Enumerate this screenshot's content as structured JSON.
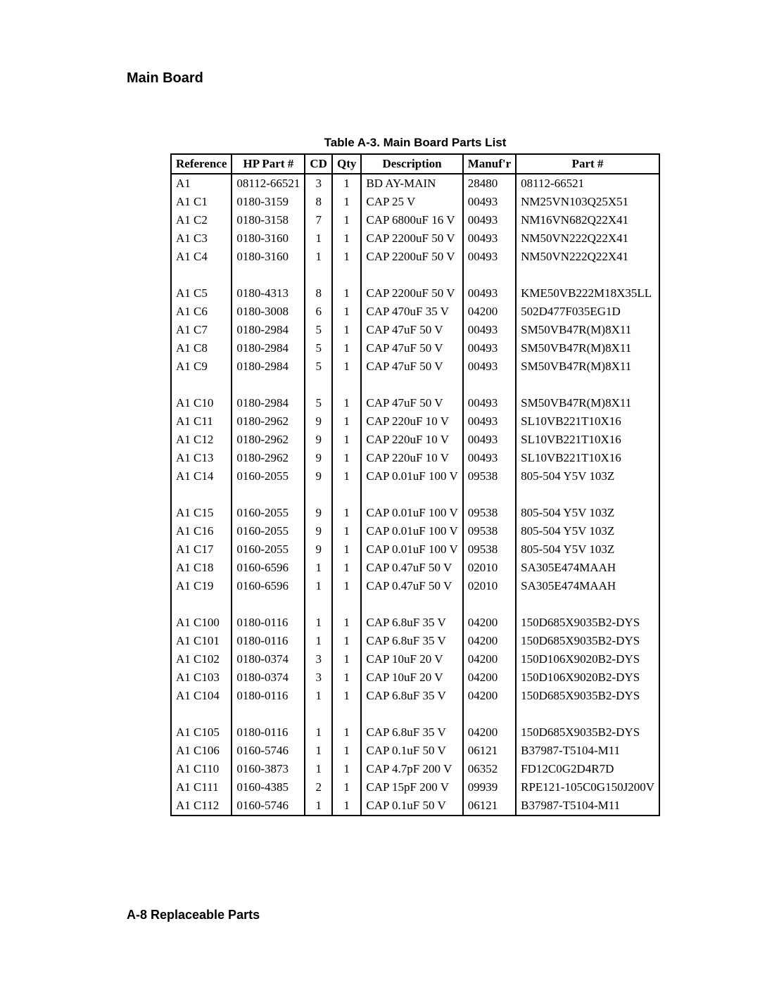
{
  "section_title": "Main Board",
  "table_title": "Table A-3. Main Board Parts List",
  "footer": "A-8   Replaceable Parts",
  "table": {
    "columns": [
      "Reference",
      "HP Part #",
      "CD",
      "Qty",
      "Description",
      "Manuf'r",
      "Part #"
    ],
    "column_align": [
      "left",
      "left",
      "center",
      "center",
      "left",
      "left",
      "left"
    ],
    "groups": [
      {
        "rows": [
          [
            "A1",
            "08112-66521",
            "3",
            "1",
            "BD AY-MAIN",
            "28480",
            "08112-66521"
          ],
          [
            "A1 C1",
            "0180-3159",
            "8",
            "1",
            "CAP 25 V",
            "00493",
            "NM25VN103Q25X51"
          ],
          [
            "A1 C2",
            "0180-3158",
            "7",
            "1",
            "CAP 6800uF 16 V",
            "00493",
            "NM16VN682Q22X41"
          ],
          [
            "A1 C3",
            "0180-3160",
            "1",
            "1",
            "CAP 2200uF 50 V",
            "00493",
            "NM50VN222Q22X41"
          ],
          [
            "A1 C4",
            "0180-3160",
            "1",
            "1",
            "CAP 2200uF 50 V",
            "00493",
            "NM50VN222Q22X41"
          ]
        ]
      },
      {
        "rows": [
          [
            "A1 C5",
            "0180-4313",
            "8",
            "1",
            "CAP 2200uF 50 V",
            "00493",
            "KME50VB222M18X35LL"
          ],
          [
            "A1 C6",
            "0180-3008",
            "6",
            "1",
            "CAP 470uF 35 V",
            "04200",
            "502D477F035EG1D"
          ],
          [
            "A1 C7",
            "0180-2984",
            "5",
            "1",
            "CAP 47uF 50 V",
            "00493",
            "SM50VB47R(M)8X11"
          ],
          [
            "A1 C8",
            "0180-2984",
            "5",
            "1",
            "CAP 47uF 50 V",
            "00493",
            "SM50VB47R(M)8X11"
          ],
          [
            "A1 C9",
            "0180-2984",
            "5",
            "1",
            "CAP 47uF 50 V",
            "00493",
            "SM50VB47R(M)8X11"
          ]
        ]
      },
      {
        "rows": [
          [
            "A1 C10",
            "0180-2984",
            "5",
            "1",
            "CAP 47uF 50 V",
            "00493",
            "SM50VB47R(M)8X11"
          ],
          [
            "A1 C11",
            "0180-2962",
            "9",
            "1",
            "CAP 220uF 10 V",
            "00493",
            "SL10VB221T10X16"
          ],
          [
            "A1 C12",
            "0180-2962",
            "9",
            "1",
            "CAP 220uF 10 V",
            "00493",
            "SL10VB221T10X16"
          ],
          [
            "A1 C13",
            "0180-2962",
            "9",
            "1",
            "CAP 220uF 10 V",
            "00493",
            "SL10VB221T10X16"
          ],
          [
            "A1 C14",
            "0160-2055",
            "9",
            "1",
            "CAP 0.01uF 100 V",
            "09538",
            "805-504 Y5V 103Z"
          ]
        ]
      },
      {
        "rows": [
          [
            "A1 C15",
            "0160-2055",
            "9",
            "1",
            "CAP 0.01uF 100 V",
            "09538",
            "805-504 Y5V 103Z"
          ],
          [
            "A1 C16",
            "0160-2055",
            "9",
            "1",
            "CAP 0.01uF 100 V",
            "09538",
            "805-504 Y5V 103Z"
          ],
          [
            "A1 C17",
            "0160-2055",
            "9",
            "1",
            "CAP 0.01uF 100 V",
            "09538",
            "805-504 Y5V 103Z"
          ],
          [
            "A1 C18",
            "0160-6596",
            "1",
            "1",
            "CAP 0.47uF 50 V",
            "02010",
            "SA305E474MAAH"
          ],
          [
            "A1 C19",
            "0160-6596",
            "1",
            "1",
            "CAP 0.47uF 50 V",
            "02010",
            "SA305E474MAAH"
          ]
        ]
      },
      {
        "rows": [
          [
            "A1 C100",
            "0180-0116",
            "1",
            "1",
            "CAP 6.8uF 35 V",
            "04200",
            "150D685X9035B2-DYS"
          ],
          [
            "A1 C101",
            "0180-0116",
            "1",
            "1",
            "CAP 6.8uF 35 V",
            "04200",
            "150D685X9035B2-DYS"
          ],
          [
            "A1 C102",
            "0180-0374",
            "3",
            "1",
            "CAP 10uF 20 V",
            "04200",
            "150D106X9020B2-DYS"
          ],
          [
            "A1 C103",
            "0180-0374",
            "3",
            "1",
            "CAP 10uF 20 V",
            "04200",
            "150D106X9020B2-DYS"
          ],
          [
            "A1 C104",
            "0180-0116",
            "1",
            "1",
            "CAP 6.8uF 35 V",
            "04200",
            "150D685X9035B2-DYS"
          ]
        ]
      },
      {
        "rows": [
          [
            "A1 C105",
            "0180-0116",
            "1",
            "1",
            "CAP 6.8uF 35 V",
            "04200",
            "150D685X9035B2-DYS"
          ],
          [
            "A1 C106",
            "0160-5746",
            "1",
            "1",
            "CAP 0.1uF 50 V",
            "06121",
            "B37987-T5104-M11"
          ],
          [
            "A1 C110",
            "0160-3873",
            "1",
            "1",
            "CAP 4.7pF 200 V",
            "06352",
            "FD12C0G2D4R7D"
          ],
          [
            "A1 C111",
            "0160-4385",
            "2",
            "1",
            "CAP 15pF 200 V",
            "09939",
            "RPE121-105C0G150J200V"
          ],
          [
            "A1 C112",
            "0160-5746",
            "1",
            "1",
            "CAP 0.1uF 50 V",
            "06121",
            "B37987-T5104-M11"
          ]
        ]
      }
    ]
  }
}
